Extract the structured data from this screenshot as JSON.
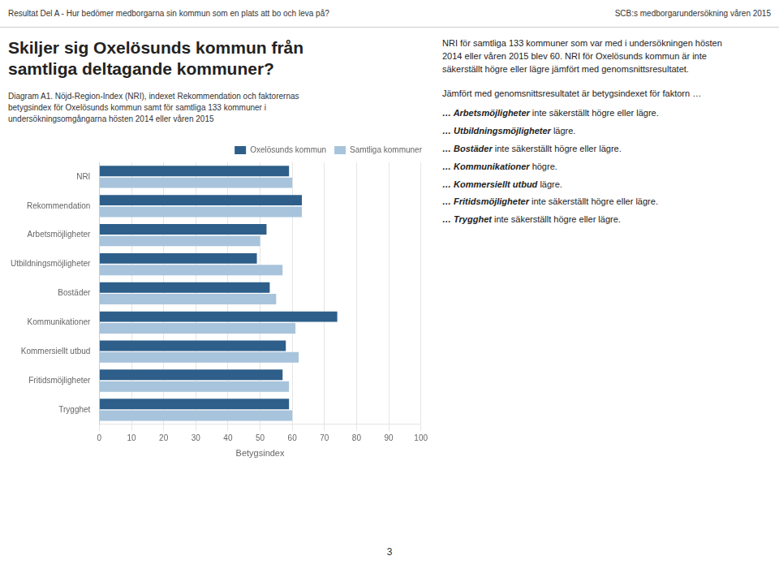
{
  "chart_data": {
    "type": "bar",
    "orientation": "horizontal",
    "title": "Skiljer sig Oxelösunds kommun från\nsamtliga deltagande kommuner?",
    "subtitle": "Diagram A1. Nöjd-Region-Index (NRI), indexet Rekommendation och faktorernas\nbetygsindex för Oxelösunds kommun samt för samtliga 133 kommuner i\nundersökningsomgångarna hösten 2014 eller våren 2015",
    "categories": [
      "NRI",
      "Rekommendation",
      "Arbetsmöjligheter",
      "Utbildningsmöjligheter",
      "Bostäder",
      "Kommunikationer",
      "Kommersiellt utbud",
      "Fritidsmöjligheter",
      "Trygghet"
    ],
    "series": [
      {
        "name": "Oxelösunds kommun",
        "color": "#2E5F8A",
        "values": [
          59,
          63,
          52,
          49,
          53,
          74,
          58,
          57,
          59
        ]
      },
      {
        "name": "Samtliga kommuner",
        "color": "#A8C4DC",
        "values": [
          60,
          63,
          50,
          57,
          55,
          61,
          62,
          59,
          60
        ]
      }
    ],
    "xlabel": "Betygsindex",
    "xlim": [
      0,
      100
    ],
    "xticks": [
      0,
      10,
      20,
      30,
      40,
      50,
      60,
      70,
      80,
      90,
      100
    ],
    "grid": true,
    "legend": "upper right",
    "annotations": [
      "Resultat Del A - Hur bedömer medborgarna sin kommun som en plats att bo och leva på?",
      "SCB:s medborgarundersökning våren 2015",
      "NRI för samtliga 133 kommuner som var med i undersökningen hösten\n2014 eller våren 2015 blev 60. NRI för Oxelösunds kommun är inte\nsäkerställt högre eller lägre jämfört med genomsnittsresultatet.",
      "Jämfört med genomsnittsresultatet är betygsindexet för faktorn …",
      "… Arbetsmöjligheter inte säkerställt högre eller lägre.",
      "… Utbildningsmöjligheter lägre.",
      "… Bostäder inte säkerställt högre eller lägre.",
      "… Kommunikationer högre.",
      "… Kommersiellt utbud lägre.",
      "… Fritidsmöjligheter inte säkerställt högre eller lägre.",
      "… Trygghet inte säkerställt högre eller lägre.",
      "3"
    ]
  }
}
